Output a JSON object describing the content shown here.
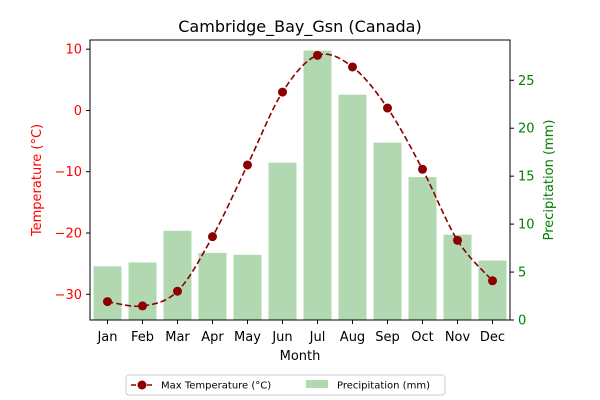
{
  "chart_data": {
    "type": "bar+line",
    "title": "Cambridge_Bay_Gsn (Canada)",
    "xlabel": "Month",
    "ylabel_left": "Temperature (°C)",
    "ylabel_right": "Precipitation (mm)",
    "categories": [
      "Jan",
      "Feb",
      "Mar",
      "Apr",
      "May",
      "Jun",
      "Jul",
      "Aug",
      "Sep",
      "Oct",
      "Nov",
      "Dec"
    ],
    "series": [
      {
        "name": "Max Temperature (°C)",
        "type": "line",
        "axis": "left",
        "color": "#8b0000",
        "style": "dashed",
        "marker": "circle",
        "values": [
          -31.2,
          -31.9,
          -29.5,
          -20.6,
          -8.9,
          3.0,
          9.0,
          7.1,
          0.4,
          -9.6,
          -21.2,
          -27.8
        ]
      },
      {
        "name": "Precipitation (mm)",
        "type": "bar",
        "axis": "right",
        "color": "#b1d8b1",
        "values": [
          5.6,
          6.0,
          9.3,
          7.0,
          6.8,
          16.4,
          28.1,
          23.5,
          18.5,
          14.9,
          8.9,
          6.2
        ]
      }
    ],
    "ylim_left": [
      -34.2,
      11.5
    ],
    "ylim_right": [
      0,
      29.2
    ],
    "yticks_left": [
      10,
      0,
      -10,
      -20,
      -30
    ],
    "yticks_left_labels": [
      "10",
      "0",
      "−10",
      "−20",
      "−30"
    ],
    "yticks_right": [
      0,
      5,
      10,
      15,
      20,
      25
    ],
    "left_axis_color": "#ff0000",
    "right_axis_color": "#008000",
    "legend": {
      "position": "bottom-center",
      "entries": [
        "Max Temperature (°C)",
        "Precipitation (mm)"
      ]
    },
    "grid": false
  }
}
